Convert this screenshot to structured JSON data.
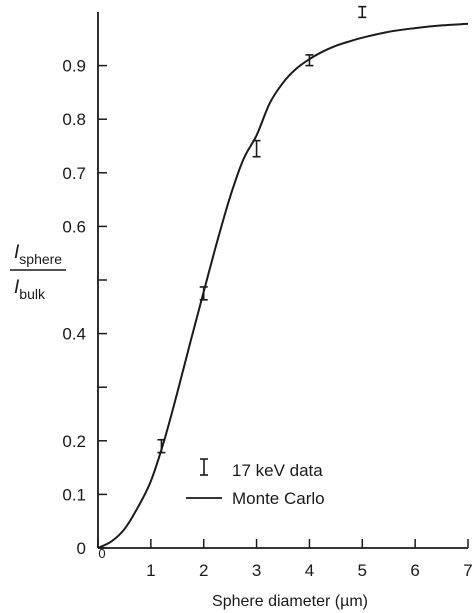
{
  "chart_data": {
    "type": "line",
    "xlabel": "Sphere diameter (µm)",
    "ylabel_main_top": "I",
    "ylabel_sub_top": "sphere",
    "ylabel_main_bottom": "I",
    "ylabel_sub_bottom": "bulk",
    "xlim": [
      0,
      7
    ],
    "ylim": [
      0,
      1.0
    ],
    "x_ticks": [
      0,
      1,
      2,
      3,
      4,
      5,
      6,
      7
    ],
    "x_tick_labels": [
      "0",
      "1",
      "2",
      "3",
      "4",
      "5",
      "6",
      "7"
    ],
    "y_ticks": [
      0,
      0.1,
      0.2,
      0.3,
      0.4,
      0.5,
      0.6,
      0.7,
      0.8,
      0.9
    ],
    "y_tick_labels": [
      "0",
      "0.1",
      "0.2",
      "",
      "0.4",
      "",
      "0.6",
      "0.7",
      "0.8",
      "0.9"
    ],
    "series": [
      {
        "name": "17 keV data",
        "style": "errorbar",
        "x": [
          1.2,
          2.0,
          3.0,
          4.0,
          5.0
        ],
        "y": [
          0.19,
          0.475,
          0.745,
          0.91,
          1.0
        ],
        "err": [
          0.012,
          0.012,
          0.015,
          0.01,
          0.01
        ]
      },
      {
        "name": "Monte Carlo",
        "style": "line",
        "x": [
          0,
          0.25,
          0.5,
          0.75,
          1.0,
          1.25,
          1.5,
          1.75,
          2.0,
          2.25,
          2.5,
          2.75,
          3.0,
          3.25,
          3.5,
          3.75,
          4.0,
          4.25,
          4.5,
          4.75,
          5.0,
          5.5,
          6.0,
          6.5,
          7.0
        ],
        "y": [
          0,
          0.012,
          0.035,
          0.075,
          0.125,
          0.2,
          0.29,
          0.385,
          0.478,
          0.57,
          0.655,
          0.725,
          0.77,
          0.83,
          0.868,
          0.894,
          0.912,
          0.926,
          0.937,
          0.945,
          0.952,
          0.963,
          0.97,
          0.975,
          0.978
        ]
      }
    ],
    "legend_position": "bottom-right",
    "grid": false
  }
}
